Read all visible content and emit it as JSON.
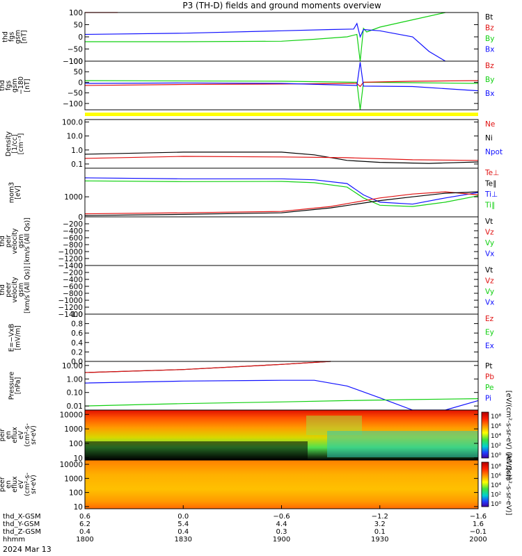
{
  "title": "P3 (TH-D) fields and ground moments overview",
  "colors": {
    "black": "#000000",
    "red": "#e01010",
    "green": "#10d010",
    "blue": "#1010ff",
    "yellow": "#ffff00"
  },
  "chart_data": [
    {
      "type": "line",
      "ylabel": [
        "thd",
        "fgs",
        "gsm",
        "[nT]"
      ],
      "ylim": [
        -100,
        100
      ],
      "yticks": [
        "100",
        "50",
        "0",
        "−50",
        "−100"
      ],
      "legend": [
        {
          "label": "Bt",
          "color": "black"
        },
        {
          "label": "Bz",
          "color": "red"
        },
        {
          "label": "By",
          "color": "green"
        },
        {
          "label": "Bx",
          "color": "blue"
        }
      ],
      "series": [
        {
          "color": "red",
          "x": [
            1800,
            1808,
            1810
          ],
          "y": [
            100,
            104,
            108
          ]
        },
        {
          "color": "green",
          "x": [
            1800,
            1830,
            1900,
            1910,
            1920,
            1923,
            1924,
            1925,
            1926,
            1930,
            1940,
            1950
          ],
          "y": [
            -20,
            -20,
            -18,
            -10,
            0,
            10,
            -100,
            35,
            20,
            40,
            70,
            110
          ]
        },
        {
          "color": "blue",
          "x": [
            1800,
            1830,
            1900,
            1915,
            1922,
            1923,
            1924,
            1925,
            1930,
            1940,
            1945,
            1950
          ],
          "y": [
            10,
            15,
            25,
            30,
            32,
            55,
            0,
            30,
            25,
            0,
            -60,
            -100
          ]
        }
      ]
    },
    {
      "type": "line",
      "ylabel": [
        "thd",
        "fgs",
        "gsm",
        "−180",
        "[nT]"
      ],
      "ylim": [
        -130,
        100
      ],
      "yticks": [
        "100",
        "50",
        "0",
        "−50",
        "−100"
      ],
      "legend": [
        {
          "label": "Bz",
          "color": "red"
        },
        {
          "label": "By",
          "color": "green"
        },
        {
          "label": "Bx",
          "color": "blue"
        }
      ],
      "series": [
        {
          "color": "green",
          "x": [
            1800,
            1900,
            1923,
            1924,
            1925,
            1940,
            2000
          ],
          "y": [
            8,
            5,
            0,
            -130,
            0,
            -2,
            -5
          ]
        },
        {
          "color": "red",
          "x": [
            1800,
            1830,
            1900,
            1923,
            1924,
            1925,
            1940,
            2000
          ],
          "y": [
            -15,
            -10,
            -8,
            -5,
            -20,
            0,
            5,
            8
          ]
        },
        {
          "color": "blue",
          "x": [
            1800,
            1830,
            1900,
            1923,
            1924,
            1925,
            1940,
            2000
          ],
          "y": [
            -5,
            -3,
            -5,
            -15,
            95,
            -18,
            -20,
            -40
          ]
        }
      ]
    },
    {
      "type": "line",
      "ylabel": [
        "Density",
        "[1/cc]",
        "[cm⁻³]"
      ],
      "scale": "log",
      "ylim": [
        0.05,
        150
      ],
      "yticks": [
        "100.0",
        "10.0",
        "1.0",
        "0.1"
      ],
      "tickvals": [
        100,
        10,
        1,
        0.1
      ],
      "legend": [
        {
          "label": "Ne",
          "color": "red"
        },
        {
          "label": "Ni",
          "color": "black"
        },
        {
          "label": "Npot",
          "color": "blue"
        }
      ],
      "series": [
        {
          "color": "black",
          "x": [
            1800,
            1830,
            1900,
            1910,
            1920,
            1930,
            1945,
            2000
          ],
          "y": [
            0.5,
            0.7,
            0.7,
            0.45,
            0.18,
            0.13,
            0.11,
            0.14
          ]
        },
        {
          "color": "red",
          "x": [
            1800,
            1830,
            1900,
            1920,
            1940,
            2000
          ],
          "y": [
            0.25,
            0.35,
            0.32,
            0.28,
            0.2,
            0.18
          ]
        }
      ]
    },
    {
      "type": "line",
      "ylabel": [
        "mom3",
        "[eV]"
      ],
      "scale": "log",
      "ylim": [
        150,
        15000
      ],
      "yticks": [
        "1000"
      ],
      "tickvals": [
        1000
      ],
      "legend": [
        {
          "label": "Te⊥",
          "color": "red"
        },
        {
          "label": "Te∥",
          "color": "black"
        },
        {
          "label": "Ti⊥",
          "color": "blue"
        },
        {
          "label": "Ti∥",
          "color": "green"
        }
      ],
      "series": [
        {
          "color": "blue",
          "x": [
            1800,
            1830,
            1900,
            1910,
            1920,
            1925,
            1930,
            1940,
            1950,
            2000
          ],
          "y": [
            6000,
            5500,
            5500,
            5000,
            3500,
            1200,
            600,
            500,
            900,
            1500
          ]
        },
        {
          "color": "green",
          "x": [
            1800,
            1830,
            1900,
            1910,
            1920,
            1925,
            1930,
            1940,
            1950,
            2000
          ],
          "y": [
            4500,
            4200,
            4300,
            3800,
            2500,
            900,
            450,
            400,
            600,
            1100
          ]
        },
        {
          "color": "red",
          "x": [
            1800,
            1830,
            1900,
            1915,
            1930,
            1940,
            1950,
            2000
          ],
          "y": [
            200,
            220,
            250,
            400,
            900,
            1300,
            1600,
            1200
          ]
        },
        {
          "color": "black",
          "x": [
            1800,
            1830,
            1900,
            1915,
            1930,
            1940,
            1950,
            2000
          ],
          "y": [
            170,
            190,
            220,
            350,
            700,
            1000,
            1400,
            1600
          ]
        }
      ]
    },
    {
      "type": "line",
      "ylabel": [
        "thd",
        "peir",
        "velocity",
        "gsm",
        "[km/s (All Qs)]"
      ],
      "ylim": [
        -1400,
        0
      ],
      "yticks": [
        "0",
        "−200",
        "−400",
        "−600",
        "−800",
        "−1000",
        "−1200",
        "−1400"
      ],
      "legend": [
        {
          "label": "Vt",
          "color": "black"
        },
        {
          "label": "Vz",
          "color": "red"
        },
        {
          "label": "Vy",
          "color": "green"
        },
        {
          "label": "Vx",
          "color": "blue"
        }
      ],
      "series": []
    },
    {
      "type": "line",
      "ylabel": [
        "thd",
        "peer",
        "velocity",
        "gsm",
        "[km/s (All Qs)]"
      ],
      "ylim": [
        -1400,
        0
      ],
      "yticks": [
        "0",
        "−200",
        "−400",
        "−600",
        "−800",
        "−1000",
        "−1200",
        "−1400"
      ],
      "legend": [
        {
          "label": "Vt",
          "color": "black"
        },
        {
          "label": "Vz",
          "color": "red"
        },
        {
          "label": "Vy",
          "color": "green"
        },
        {
          "label": "Vx",
          "color": "blue"
        }
      ],
      "series": []
    },
    {
      "type": "line",
      "ylabel": [
        "E=−VxB",
        "[mV/m]"
      ],
      "ylim": [
        0,
        1
      ],
      "yticks": [
        "1.0",
        "0.8",
        "0.6",
        "0.4",
        "0.2",
        "0.0"
      ],
      "legend": [
        {
          "label": "Ez",
          "color": "red"
        },
        {
          "label": "Ey",
          "color": "green"
        },
        {
          "label": "Ex",
          "color": "blue"
        }
      ],
      "series": []
    },
    {
      "type": "line",
      "ylabel": [
        "Pressure",
        "[nPa]"
      ],
      "scale": "log",
      "ylim": [
        0.005,
        20
      ],
      "yticks": [
        "10.00",
        "1.00",
        "0.10",
        "0.01"
      ],
      "tickvals": [
        10,
        1,
        0.1,
        0.01
      ],
      "legend": [
        {
          "label": "Pt",
          "color": "black"
        },
        {
          "label": "Pb",
          "color": "red"
        },
        {
          "label": "Pe",
          "color": "green"
        },
        {
          "label": "Pi",
          "color": "blue"
        }
      ],
      "series": [
        {
          "color": "black",
          "x": [
            1800,
            1830,
            1900,
            1915
          ],
          "y": [
            3,
            5,
            12,
            20
          ]
        },
        {
          "color": "red",
          "x": [
            1800,
            1830,
            1900,
            1915
          ],
          "y": [
            3,
            5,
            12,
            20
          ]
        },
        {
          "color": "blue",
          "x": [
            1800,
            1830,
            1900,
            1910,
            1920,
            1930,
            1940,
            1950,
            2000
          ],
          "y": [
            0.5,
            0.7,
            0.8,
            0.8,
            0.3,
            0.04,
            0.004,
            0.004,
            0.025
          ]
        },
        {
          "color": "green",
          "x": [
            1800,
            1830,
            1900,
            1920,
            1940,
            2000
          ],
          "y": [
            0.01,
            0.015,
            0.02,
            0.025,
            0.03,
            0.035
          ]
        }
      ]
    },
    {
      "type": "heatmap",
      "ylabel": [
        "thd",
        "peir",
        "en",
        "eflux",
        "eV",
        "(cm²-s-",
        "sr-eV)"
      ],
      "scale": "log",
      "ylim": [
        7,
        20000
      ],
      "yticks": [
        "10000",
        "1000",
        "100",
        "10"
      ],
      "tickvals": [
        10000,
        1000,
        100,
        10
      ],
      "colorbar_label": "[eV/(cm²-s-sr-eV) (All Qs)]",
      "colorbar_ticks": [
        "10⁸",
        "10⁶",
        "10⁴",
        "10²",
        "10⁰"
      ],
      "style": "ion"
    },
    {
      "type": "heatmap",
      "ylabel": [
        "thd",
        "peer",
        "en",
        "eflux",
        "eV",
        "(cm²-s-",
        "sr-eV)"
      ],
      "scale": "log",
      "ylim": [
        7,
        20000
      ],
      "yticks": [
        "10000",
        "1000",
        "100",
        "10"
      ],
      "tickvals": [
        10000,
        1000,
        100,
        10
      ],
      "colorbar_label": "[eV/(cm²-s-sr-eV)]",
      "colorbar_ticks": [
        "10⁸",
        "10⁶",
        "10⁴",
        "10²",
        "10⁰"
      ],
      "style": "electron"
    }
  ],
  "x_axis": {
    "range": [
      1800,
      2000
    ],
    "tick_times": [
      1800,
      1830,
      1900,
      1930,
      2000
    ],
    "rows": [
      {
        "label": "thd_X-GSM",
        "values": [
          "0.6",
          "0.0",
          "−0.6",
          "−1.2",
          "−1.6"
        ]
      },
      {
        "label": "thd_Y-GSM",
        "values": [
          "6.2",
          "5.4",
          "4.4",
          "3.2",
          "1.6"
        ]
      },
      {
        "label": "thd_Z-GSM",
        "values": [
          "0.4",
          "0.4",
          "0.3",
          "0.1",
          "−0.1"
        ]
      },
      {
        "label": "hhmm",
        "values": [
          "1800",
          "1830",
          "1900",
          "1930",
          "2000"
        ]
      }
    ],
    "date": "2024 Mar 13"
  }
}
